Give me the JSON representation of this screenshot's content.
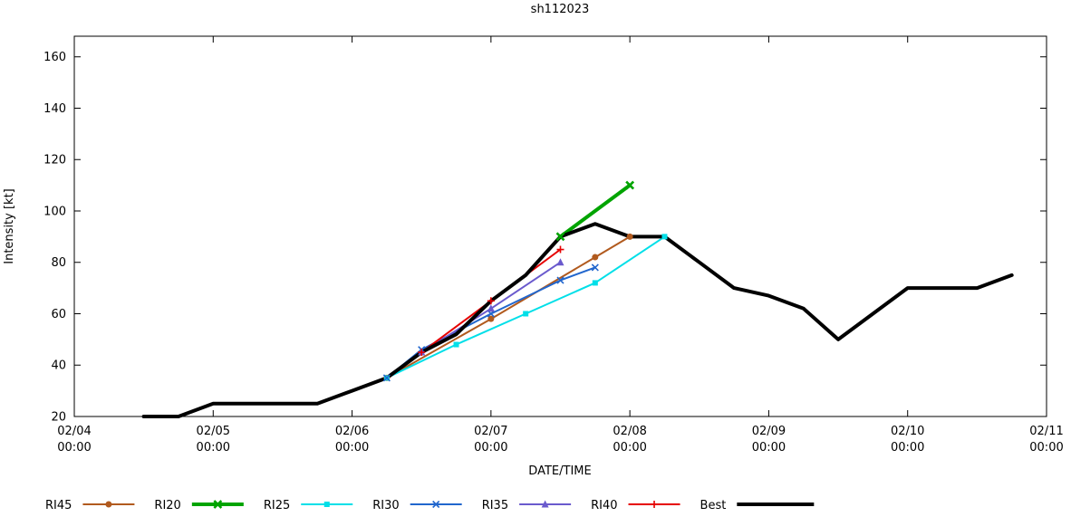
{
  "window": {
    "title": "sh112023"
  },
  "chart_data": {
    "type": "line",
    "title": "sh112023",
    "xlabel": "DATE/TIME",
    "ylabel": "Intensity [kt]",
    "ylim": [
      20,
      168
    ],
    "yticks": [
      20,
      40,
      60,
      80,
      100,
      120,
      140,
      160
    ],
    "xticks": [
      {
        "date": "02/04",
        "time": "00:00"
      },
      {
        "date": "02/05",
        "time": "00:00"
      },
      {
        "date": "02/06",
        "time": "00:00"
      },
      {
        "date": "02/07",
        "time": "00:00"
      },
      {
        "date": "02/08",
        "time": "00:00"
      },
      {
        "date": "02/09",
        "time": "00:00"
      },
      {
        "date": "02/10",
        "time": "00:00"
      },
      {
        "date": "02/11",
        "time": "00:00"
      }
    ],
    "grid": false,
    "legend_position": "bottom",
    "series": [
      {
        "name": "RI45",
        "color": "#b15a1e",
        "marker": "circle",
        "width": 2,
        "points": [
          [
            "02/06 06:00",
            35
          ],
          [
            "02/07 00:00",
            58
          ],
          [
            "02/07 18:00",
            82
          ],
          [
            "02/08 00:00",
            90
          ]
        ]
      },
      {
        "name": "RI20",
        "color": "#00a400",
        "marker": "cross",
        "width": 4,
        "points": [
          [
            "02/07 12:00",
            90
          ],
          [
            "02/08 00:00",
            110
          ]
        ]
      },
      {
        "name": "RI25",
        "color": "#00dfe8",
        "marker": "square",
        "width": 2,
        "points": [
          [
            "02/06 06:00",
            35
          ],
          [
            "02/06 18:00",
            48
          ],
          [
            "02/07 06:00",
            60
          ],
          [
            "02/07 18:00",
            72
          ],
          [
            "02/08 06:00",
            90
          ]
        ]
      },
      {
        "name": "RI30",
        "color": "#2166cd",
        "marker": "x",
        "width": 2,
        "points": [
          [
            "02/06 06:00",
            35
          ],
          [
            "02/06 12:00",
            46
          ],
          [
            "02/07 00:00",
            60
          ],
          [
            "02/07 12:00",
            73
          ],
          [
            "02/07 18:00",
            78
          ]
        ]
      },
      {
        "name": "RI35",
        "color": "#6a5acd",
        "marker": "triangle",
        "width": 2,
        "points": [
          [
            "02/06 12:00",
            45
          ],
          [
            "02/07 00:00",
            62
          ],
          [
            "02/07 12:00",
            80
          ]
        ]
      },
      {
        "name": "RI40",
        "color": "#e60000",
        "marker": "plus",
        "width": 2,
        "points": [
          [
            "02/06 12:00",
            45
          ],
          [
            "02/07 00:00",
            65
          ],
          [
            "02/07 12:00",
            85
          ]
        ]
      },
      {
        "name": "Best",
        "color": "#000000",
        "marker": "none",
        "width": 4,
        "points": [
          [
            "02/04 12:00",
            20
          ],
          [
            "02/04 18:00",
            20
          ],
          [
            "02/05 00:00",
            25
          ],
          [
            "02/05 06:00",
            25
          ],
          [
            "02/05 12:00",
            25
          ],
          [
            "02/05 18:00",
            25
          ],
          [
            "02/06 00:00",
            30
          ],
          [
            "02/06 06:00",
            35
          ],
          [
            "02/06 12:00",
            45
          ],
          [
            "02/06 18:00",
            52
          ],
          [
            "02/07 00:00",
            65
          ],
          [
            "02/07 06:00",
            75
          ],
          [
            "02/07 12:00",
            90
          ],
          [
            "02/07 18:00",
            95
          ],
          [
            "02/08 00:00",
            90
          ],
          [
            "02/08 06:00",
            90
          ],
          [
            "02/08 12:00",
            80
          ],
          [
            "02/08 18:00",
            70
          ],
          [
            "02/09 00:00",
            67
          ],
          [
            "02/09 06:00",
            62
          ],
          [
            "02/09 12:00",
            50
          ],
          [
            "02/09 18:00",
            60
          ],
          [
            "02/10 00:00",
            70
          ],
          [
            "02/10 06:00",
            70
          ],
          [
            "02/10 12:00",
            70
          ],
          [
            "02/10 18:00",
            75
          ]
        ]
      }
    ]
  }
}
